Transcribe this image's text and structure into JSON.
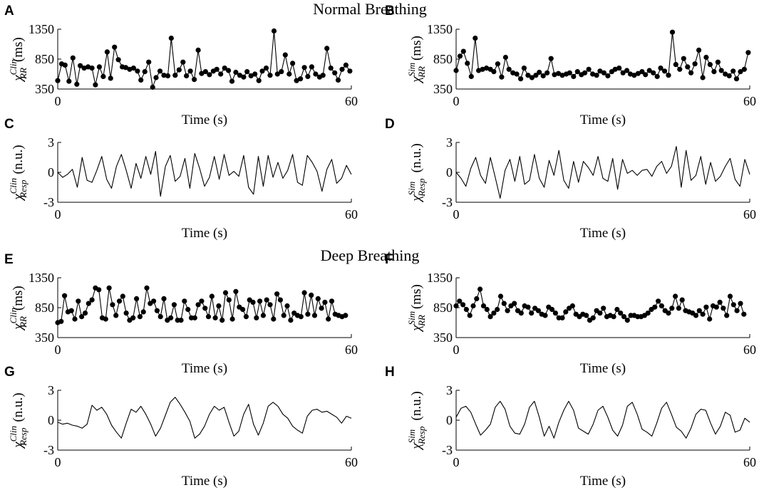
{
  "sections": [
    {
      "title": "Normal Breathing"
    },
    {
      "title": "Deep Breathing"
    }
  ],
  "chart_data": [
    {
      "letter": "A",
      "type": "line",
      "markers": true,
      "xlabel": "Time (s)",
      "ylabel_symbol": "χ",
      "ylabel_sup": "Clin",
      "ylabel_sub": "RR",
      "ylabel_unit": "(ms)",
      "xlim": [
        0,
        60
      ],
      "ylim": [
        350,
        1350
      ],
      "xticks": [
        "0",
        "60"
      ],
      "yticks": [
        "350",
        "850",
        "1350"
      ],
      "x": [
        0.0,
        0.8,
        1.5,
        2.3,
        3.1,
        3.9,
        4.6,
        5.4,
        6.2,
        7.0,
        7.7,
        8.5,
        9.3,
        10.1,
        10.8,
        11.6,
        12.4,
        13.2,
        13.9,
        14.7,
        15.5,
        16.3,
        17.0,
        17.8,
        18.6,
        19.4,
        20.1,
        20.9,
        21.7,
        22.5,
        23.2,
        24.0,
        24.8,
        25.6,
        26.3,
        27.1,
        27.9,
        28.7,
        29.4,
        30.2,
        31.0,
        31.8,
        32.5,
        33.3,
        34.1,
        34.9,
        35.6,
        36.4,
        37.2,
        38.0,
        38.7,
        39.5,
        40.3,
        41.1,
        41.8,
        42.6,
        43.4,
        44.2,
        44.9,
        45.7,
        46.5,
        47.3,
        48.0,
        48.8,
        49.6,
        50.4,
        51.1,
        51.9,
        52.7,
        53.5,
        54.2,
        55.0,
        55.8,
        56.6,
        57.3,
        58.1,
        58.9,
        59.7
      ],
      "values": [
        490,
        770,
        750,
        480,
        870,
        430,
        740,
        700,
        720,
        700,
        420,
        720,
        560,
        970,
        530,
        1050,
        840,
        720,
        710,
        680,
        700,
        650,
        500,
        640,
        800,
        380,
        540,
        650,
        580,
        570,
        1200,
        580,
        670,
        800,
        570,
        650,
        510,
        1000,
        610,
        640,
        590,
        650,
        680,
        600,
        700,
        660,
        480,
        630,
        580,
        550,
        640,
        570,
        600,
        490,
        650,
        700,
        580,
        1320,
        600,
        640,
        920,
        600,
        780,
        490,
        520,
        710,
        560,
        720,
        600,
        550,
        580,
        1030,
        700,
        620,
        500,
        680,
        750,
        650
      ]
    },
    {
      "letter": "B",
      "type": "line",
      "markers": true,
      "xlabel": "Time (s)",
      "ylabel_symbol": "χ",
      "ylabel_sup": "Sim",
      "ylabel_sub": "RR",
      "ylabel_unit": "(ms)",
      "xlim": [
        0,
        60
      ],
      "ylim": [
        350,
        1350
      ],
      "xticks": [
        "0",
        "60"
      ],
      "yticks": [
        "350",
        "850",
        "1350"
      ],
      "x": [
        0.0,
        0.8,
        1.5,
        2.3,
        3.1,
        3.9,
        4.6,
        5.4,
        6.2,
        7.0,
        7.7,
        8.5,
        9.3,
        10.1,
        10.8,
        11.6,
        12.4,
        13.2,
        13.9,
        14.7,
        15.5,
        16.3,
        17.0,
        17.8,
        18.6,
        19.4,
        20.1,
        20.9,
        21.7,
        22.5,
        23.2,
        24.0,
        24.8,
        25.6,
        26.3,
        27.1,
        27.9,
        28.7,
        29.4,
        30.2,
        31.0,
        31.8,
        32.5,
        33.3,
        34.1,
        34.9,
        35.6,
        36.4,
        37.2,
        38.0,
        38.7,
        39.5,
        40.3,
        41.1,
        41.8,
        42.6,
        43.4,
        44.2,
        44.9,
        45.7,
        46.5,
        47.3,
        48.0,
        48.8,
        49.6,
        50.4,
        51.1,
        51.9,
        52.7,
        53.5,
        54.2,
        55.0,
        55.8,
        56.6,
        57.3,
        58.1,
        58.9,
        59.7
      ],
      "values": [
        660,
        900,
        980,
        780,
        560,
        1200,
        660,
        680,
        700,
        680,
        640,
        770,
        550,
        880,
        680,
        620,
        600,
        520,
        700,
        580,
        540,
        580,
        630,
        570,
        620,
        860,
        590,
        610,
        580,
        600,
        620,
        560,
        640,
        590,
        620,
        680,
        600,
        580,
        650,
        620,
        570,
        640,
        680,
        700,
        620,
        660,
        600,
        580,
        610,
        640,
        590,
        660,
        620,
        560,
        700,
        650,
        580,
        1300,
        760,
        680,
        860,
        720,
        620,
        770,
        1000,
        540,
        880,
        760,
        640,
        800,
        660,
        600,
        570,
        650,
        520,
        640,
        680,
        960
      ]
    },
    {
      "letter": "C",
      "type": "line",
      "markers": false,
      "xlabel": "Time (s)",
      "ylabel_symbol": "χ",
      "ylabel_sup": "Clin",
      "ylabel_sub": "Resp",
      "ylabel_unit": "(n.u.)",
      "xlim": [
        0,
        60
      ],
      "ylim": [
        -3,
        3
      ],
      "xticks": [
        "0",
        "60"
      ],
      "yticks": [
        "-3",
        "0",
        "3"
      ],
      "x": [
        0,
        1,
        2,
        3,
        4,
        5,
        6,
        7,
        8,
        9,
        10,
        11,
        12,
        13,
        14,
        15,
        16,
        17,
        18,
        19,
        20,
        21,
        22,
        23,
        24,
        25,
        26,
        27,
        28,
        29,
        30,
        31,
        32,
        33,
        34,
        35,
        36,
        37,
        38,
        39,
        40,
        41,
        42,
        43,
        44,
        45,
        46,
        47,
        48,
        49,
        50,
        51,
        52,
        53,
        54,
        55,
        56,
        57,
        58,
        59,
        60
      ],
      "values": [
        0.0,
        -0.5,
        -0.2,
        0.3,
        -1.5,
        1.5,
        -0.8,
        -1.0,
        0.2,
        1.6,
        -0.7,
        -1.6,
        0.6,
        1.8,
        0.2,
        -1.6,
        0.9,
        -0.6,
        1.6,
        -0.2,
        2.1,
        -2.4,
        0.6,
        1.7,
        -0.9,
        -0.4,
        1.4,
        -1.6,
        1.9,
        0.4,
        -1.4,
        -0.5,
        1.6,
        -0.7,
        1.8,
        -0.3,
        0.1,
        -0.4,
        1.7,
        -1.5,
        -2.2,
        1.6,
        -1.4,
        1.7,
        -0.5,
        1.0,
        -0.6,
        0.2,
        1.8,
        -1.0,
        -1.3,
        1.7,
        1.0,
        0.1,
        -1.9,
        0.3,
        1.3,
        -1.1,
        -0.6,
        0.7,
        -0.2
      ]
    },
    {
      "letter": "D",
      "type": "line",
      "markers": false,
      "xlabel": "Time (s)",
      "ylabel_symbol": "χ",
      "ylabel_sup": "Sim",
      "ylabel_sub": "Resp",
      "ylabel_unit": "(n.u.)",
      "xlim": [
        0,
        60
      ],
      "ylim": [
        -3,
        3
      ],
      "xticks": [
        "0",
        "60"
      ],
      "yticks": [
        "-3",
        "0",
        "3"
      ],
      "x": [
        0,
        1,
        2,
        3,
        4,
        5,
        6,
        7,
        8,
        9,
        10,
        11,
        12,
        13,
        14,
        15,
        16,
        17,
        18,
        19,
        20,
        21,
        22,
        23,
        24,
        25,
        26,
        27,
        28,
        29,
        30,
        31,
        32,
        33,
        34,
        35,
        36,
        37,
        38,
        39,
        40,
        41,
        42,
        43,
        44,
        45,
        46,
        47,
        48,
        49,
        50,
        51,
        52,
        53,
        54,
        55,
        56,
        57,
        58,
        59,
        60
      ],
      "values": [
        0.0,
        -0.6,
        -1.4,
        0.4,
        1.5,
        -0.3,
        -1.1,
        1.5,
        -0.5,
        -2.6,
        0.2,
        1.3,
        -0.9,
        1.6,
        -1.2,
        -0.8,
        1.8,
        -0.6,
        -1.5,
        1.2,
        -0.3,
        2.2,
        -0.8,
        -1.6,
        1.1,
        -1.0,
        1.1,
        0.5,
        -0.3,
        1.6,
        -0.6,
        -0.9,
        1.4,
        -1.7,
        1.3,
        -0.1,
        0.2,
        -0.3,
        0.2,
        0.3,
        -0.4,
        0.6,
        1.1,
        -0.1,
        0.6,
        2.6,
        -1.5,
        2.2,
        -0.8,
        -0.3,
        1.6,
        -1.2,
        1.0,
        -0.9,
        -0.4,
        0.6,
        1.4,
        -0.7,
        -1.4,
        1.3,
        -0.2
      ]
    },
    {
      "letter": "E",
      "type": "line",
      "markers": true,
      "xlabel": "Time (s)",
      "ylabel_symbol": "χ",
      "ylabel_sup": "Clin",
      "ylabel_sub": "RR",
      "ylabel_unit": "(ms)",
      "xlim": [
        0,
        60
      ],
      "ylim": [
        350,
        1350
      ],
      "xticks": [
        "0",
        "60"
      ],
      "yticks": [
        "350",
        "850",
        "1350"
      ],
      "x": [
        0.0,
        0.7,
        1.4,
        2.1,
        2.8,
        3.5,
        4.2,
        4.9,
        5.6,
        6.3,
        7.0,
        7.7,
        8.4,
        9.1,
        9.8,
        10.5,
        11.2,
        11.9,
        12.6,
        13.3,
        14.0,
        14.7,
        15.4,
        16.1,
        16.8,
        17.5,
        18.2,
        18.9,
        19.6,
        20.3,
        21.0,
        21.7,
        22.4,
        23.1,
        23.8,
        24.5,
        25.2,
        25.9,
        26.6,
        27.3,
        28.0,
        28.7,
        29.4,
        30.1,
        30.8,
        31.5,
        32.2,
        32.9,
        33.6,
        34.3,
        35.0,
        35.7,
        36.4,
        37.1,
        37.8,
        38.5,
        39.2,
        39.9,
        40.6,
        41.3,
        42.0,
        42.7,
        43.4,
        44.1,
        44.8,
        45.5,
        46.2,
        46.9,
        47.6,
        48.3,
        49.0,
        49.7,
        50.4,
        51.1,
        51.8,
        52.5,
        53.2,
        53.9,
        54.6,
        55.3,
        56.0,
        56.7,
        57.4,
        58.1,
        58.8
      ],
      "values": [
        600,
        620,
        1050,
        780,
        800,
        660,
        960,
        700,
        760,
        920,
        980,
        1180,
        1150,
        680,
        660,
        1180,
        900,
        720,
        960,
        1040,
        760,
        640,
        680,
        1000,
        700,
        780,
        1180,
        920,
        960,
        800,
        700,
        1000,
        640,
        680,
        900,
        640,
        640,
        960,
        820,
        680,
        680,
        900,
        960,
        840,
        700,
        1040,
        680,
        880,
        640,
        1100,
        980,
        660,
        1120,
        860,
        820,
        700,
        980,
        940,
        680,
        960,
        720,
        980,
        900,
        660,
        1080,
        980,
        720,
        880,
        640,
        760,
        720,
        700,
        1100,
        740,
        1060,
        720,
        1000,
        840,
        940,
        660,
        960,
        740,
        720,
        700,
        720
      ]
    },
    {
      "letter": "F",
      "type": "line",
      "markers": true,
      "xlabel": "Time (s)",
      "ylabel_symbol": "χ",
      "ylabel_sup": "Sim",
      "ylabel_sub": "RR",
      "ylabel_unit": "(ms)",
      "xlim": [
        0,
        60
      ],
      "ylim": [
        350,
        1350
      ],
      "xticks": [
        "0",
        "60"
      ],
      "yticks": [
        "350",
        "850",
        "1350"
      ],
      "x": [
        0.0,
        0.7,
        1.4,
        2.1,
        2.8,
        3.5,
        4.2,
        4.9,
        5.6,
        6.3,
        7.0,
        7.7,
        8.4,
        9.1,
        9.8,
        10.5,
        11.2,
        11.9,
        12.6,
        13.3,
        14.0,
        14.7,
        15.4,
        16.1,
        16.8,
        17.5,
        18.2,
        18.9,
        19.6,
        20.3,
        21.0,
        21.7,
        22.4,
        23.1,
        23.8,
        24.5,
        25.2,
        25.9,
        26.6,
        27.3,
        28.0,
        28.7,
        29.4,
        30.1,
        30.8,
        31.5,
        32.2,
        32.9,
        33.6,
        34.3,
        35.0,
        35.7,
        36.4,
        37.1,
        37.8,
        38.5,
        39.2,
        39.9,
        40.6,
        41.3,
        42.0,
        42.7,
        43.4,
        44.1,
        44.8,
        45.5,
        46.2,
        46.9,
        47.6,
        48.3,
        49.0,
        49.7,
        50.4,
        51.1,
        51.8,
        52.5,
        53.2,
        53.9,
        54.6,
        55.3,
        56.0,
        56.7,
        57.4,
        58.1,
        58.8
      ],
      "values": [
        880,
        960,
        900,
        820,
        720,
        880,
        1000,
        1160,
        880,
        820,
        700,
        760,
        820,
        1040,
        920,
        800,
        880,
        920,
        800,
        760,
        880,
        860,
        760,
        840,
        800,
        740,
        720,
        860,
        820,
        760,
        680,
        680,
        780,
        840,
        880,
        740,
        700,
        740,
        720,
        640,
        680,
        800,
        760,
        840,
        700,
        720,
        700,
        820,
        760,
        700,
        640,
        720,
        720,
        700,
        700,
        720,
        760,
        820,
        860,
        960,
        880,
        800,
        760,
        840,
        1040,
        840,
        980,
        800,
        780,
        760,
        720,
        800,
        740,
        860,
        660,
        880,
        860,
        940,
        840,
        720,
        1040,
        900,
        800,
        920,
        740
      ]
    },
    {
      "letter": "G",
      "type": "line",
      "markers": false,
      "xlabel": "Time (s)",
      "ylabel_symbol": "χ",
      "ylabel_sup": "Clin",
      "ylabel_sub": "Resp",
      "ylabel_unit": "(n.u.)",
      "xlim": [
        0,
        60
      ],
      "ylim": [
        -3,
        3
      ],
      "xticks": [
        "0",
        "60"
      ],
      "yticks": [
        "-3",
        "0",
        "3"
      ],
      "x": [
        0,
        1,
        2,
        3,
        4,
        5,
        6,
        7,
        8,
        9,
        10,
        11,
        12,
        13,
        14,
        15,
        16,
        17,
        18,
        19,
        20,
        21,
        22,
        23,
        24,
        25,
        26,
        27,
        28,
        29,
        30,
        31,
        32,
        33,
        34,
        35,
        36,
        37,
        38,
        39,
        40,
        41,
        42,
        43,
        44,
        45,
        46,
        47,
        48,
        49,
        50,
        51,
        52,
        53,
        54,
        55,
        56,
        57,
        58,
        59,
        60
      ],
      "values": [
        -0.2,
        -0.4,
        -0.3,
        -0.5,
        -0.6,
        -0.8,
        -0.4,
        1.5,
        1.0,
        1.3,
        0.6,
        -0.5,
        -1.2,
        -1.8,
        -0.3,
        1.1,
        0.8,
        1.4,
        0.6,
        -0.4,
        -1.6,
        -0.8,
        0.5,
        1.8,
        2.3,
        1.6,
        0.8,
        -0.1,
        -1.8,
        -1.4,
        -0.6,
        0.6,
        1.4,
        1.0,
        1.3,
        -0.2,
        -1.6,
        -1.1,
        0.6,
        1.6,
        -0.4,
        -1.5,
        -0.3,
        1.4,
        1.8,
        1.4,
        0.6,
        0.2,
        -0.6,
        -1.0,
        -1.3,
        0.4,
        1.0,
        1.1,
        0.8,
        0.9,
        0.6,
        0.3,
        -0.3,
        0.4,
        0.2
      ]
    },
    {
      "letter": "H",
      "type": "line",
      "markers": false,
      "xlabel": "Time (s)",
      "ylabel_symbol": "χ",
      "ylabel_sup": "Sim",
      "ylabel_sub": "Resp",
      "ylabel_unit": "(n.u.)",
      "xlim": [
        0,
        60
      ],
      "ylim": [
        -3,
        3
      ],
      "xticks": [
        "0",
        "60"
      ],
      "yticks": [
        "-3",
        "0",
        "3"
      ],
      "x": [
        0,
        1,
        2,
        3,
        4,
        5,
        6,
        7,
        8,
        9,
        10,
        11,
        12,
        13,
        14,
        15,
        16,
        17,
        18,
        19,
        20,
        21,
        22,
        23,
        24,
        25,
        26,
        27,
        28,
        29,
        30,
        31,
        32,
        33,
        34,
        35,
        36,
        37,
        38,
        39,
        40,
        41,
        42,
        43,
        44,
        45,
        46,
        47,
        48,
        49,
        50,
        51,
        52,
        53,
        54,
        55,
        56,
        57,
        58,
        59,
        60
      ],
      "values": [
        0.3,
        1.2,
        1.4,
        0.8,
        -0.4,
        -1.5,
        -1.0,
        -0.4,
        1.3,
        1.9,
        1.1,
        -0.6,
        -1.3,
        -1.4,
        -0.4,
        1.3,
        1.9,
        0.3,
        -1.6,
        -0.6,
        -1.8,
        -0.2,
        1.0,
        1.9,
        1.0,
        -0.8,
        -1.1,
        -1.4,
        -0.4,
        1.0,
        1.4,
        0.3,
        -1.0,
        -1.6,
        -0.5,
        1.4,
        1.8,
        0.6,
        -0.9,
        -1.2,
        -1.6,
        -0.3,
        1.2,
        1.8,
        0.6,
        -0.7,
        -1.1,
        -1.8,
        -0.8,
        0.6,
        1.1,
        1.0,
        -0.3,
        -1.4,
        -0.6,
        0.8,
        0.5,
        -1.2,
        -1.0,
        0.2,
        -0.2
      ]
    }
  ]
}
